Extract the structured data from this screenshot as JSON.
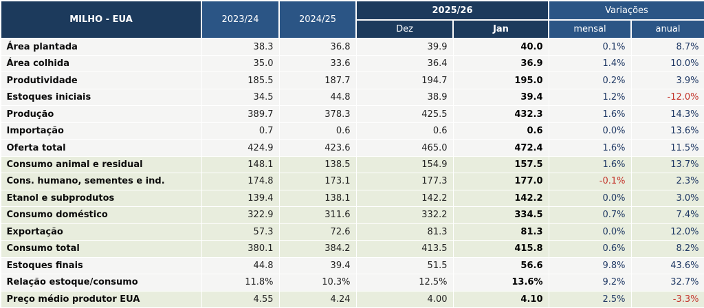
{
  "chart_data": {
    "type": "table",
    "title": "MILHO - EUA",
    "column_groups": [
      {
        "label": "2025/26",
        "columns": [
          "Dez",
          "Jan"
        ]
      },
      {
        "label": "Variações",
        "columns": [
          "mensal",
          "anual"
        ]
      }
    ],
    "columns": [
      "2023/24",
      "2024/25",
      "Dez",
      "Jan",
      "mensal",
      "anual"
    ],
    "rows": [
      {
        "label": "Área plantada",
        "values": [
          "38.3",
          "36.8",
          "39.9",
          "40.0",
          "0.1%",
          "8.7%"
        ],
        "highlight": false
      },
      {
        "label": "Área colhida",
        "values": [
          "35.0",
          "33.6",
          "36.4",
          "36.9",
          "1.4%",
          "10.0%"
        ],
        "highlight": false
      },
      {
        "label": "Produtividade",
        "values": [
          "185.5",
          "187.7",
          "194.7",
          "195.0",
          "0.2%",
          "3.9%"
        ],
        "highlight": false
      },
      {
        "label": "Estoques iniciais",
        "values": [
          "34.5",
          "44.8",
          "38.9",
          "39.4",
          "1.2%",
          "-12.0%"
        ],
        "highlight": false
      },
      {
        "label": "Produção",
        "values": [
          "389.7",
          "378.3",
          "425.5",
          "432.3",
          "1.6%",
          "14.3%"
        ],
        "highlight": false
      },
      {
        "label": "Importação",
        "values": [
          "0.7",
          "0.6",
          "0.6",
          "0.6",
          "0.0%",
          "13.6%"
        ],
        "highlight": false
      },
      {
        "label": "Oferta total",
        "values": [
          "424.9",
          "423.6",
          "465.0",
          "472.4",
          "1.6%",
          "11.5%"
        ],
        "highlight": false
      },
      {
        "label": "Consumo animal e residual",
        "values": [
          "148.1",
          "138.5",
          "154.9",
          "157.5",
          "1.6%",
          "13.7%"
        ],
        "highlight": true
      },
      {
        "label": "Cons. humano, sementes e ind.",
        "values": [
          "174.8",
          "173.1",
          "177.3",
          "177.0",
          "-0.1%",
          "2.3%"
        ],
        "highlight": true
      },
      {
        "label": "Etanol e subprodutos",
        "values": [
          "139.4",
          "138.1",
          "142.2",
          "142.2",
          "0.0%",
          "3.0%"
        ],
        "highlight": true
      },
      {
        "label": "Consumo doméstico",
        "values": [
          "322.9",
          "311.6",
          "332.2",
          "334.5",
          "0.7%",
          "7.4%"
        ],
        "highlight": true
      },
      {
        "label": "Exportação",
        "values": [
          "57.3",
          "72.6",
          "81.3",
          "81.3",
          "0.0%",
          "12.0%"
        ],
        "highlight": true
      },
      {
        "label": "Consumo total",
        "values": [
          "380.1",
          "384.2",
          "413.5",
          "415.8",
          "0.6%",
          "8.2%"
        ],
        "highlight": true
      },
      {
        "label": "Estoques finais",
        "values": [
          "44.8",
          "39.4",
          "51.5",
          "56.6",
          "9.8%",
          "43.6%"
        ],
        "highlight": false
      },
      {
        "label": "Relação estoque/consumo",
        "values": [
          "11.8%",
          "10.3%",
          "12.5%",
          "13.6%",
          "9.2%",
          "32.7%"
        ],
        "highlight": false
      },
      {
        "label": "Preço médio produtor EUA",
        "values": [
          "4.55",
          "4.24",
          "4.00",
          "4.10",
          "2.5%",
          "-3.3%"
        ],
        "highlight": true
      }
    ]
  },
  "colors": {
    "header_dark_navy": "#1C3A5C",
    "header_medium_blue": "#2B5585",
    "row_gray": "#F5F5F4",
    "row_green_highlight": "#E8EDDD",
    "variation_text": "#1F3864",
    "negative_text": "#C3342B",
    "header_text": "#FFFFFF"
  }
}
